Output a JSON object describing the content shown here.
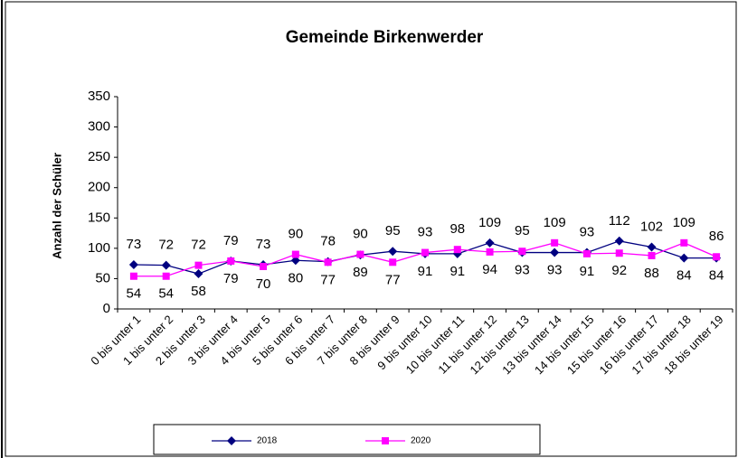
{
  "chart_data": {
    "type": "line",
    "title": "Gemeinde Birkenwerder",
    "y_label": "Anzahl der Schüler",
    "categories": [
      "0 bis unter 1",
      "1 bis unter 2",
      "2 bis unter 3",
      "3 bis unter 4",
      "4 bis unter 5",
      "5 bis unter 6",
      "6 bis unter 7",
      "7 bis unter 8",
      "8 bis unter 9",
      "9 bis unter 10",
      "10 bis unter 11",
      "11 bis unter 12",
      "12 bis unter 13",
      "13 bis unter 14",
      "14 bis unter 15",
      "15 bis unter 16",
      "16 bis unter 17",
      "17 bis unter 18",
      "18 bis unter 19"
    ],
    "series": [
      {
        "name": "2018",
        "color": "#000080",
        "marker": "diamond",
        "values": [
          73,
          72,
          58,
          79,
          73,
          80,
          78,
          89,
          95,
          91,
          91,
          109,
          93,
          93,
          93,
          112,
          102,
          84,
          84
        ]
      },
      {
        "name": "2020",
        "color": "#ff00ff",
        "marker": "square",
        "values": [
          54,
          54,
          72,
          79,
          70,
          90,
          77,
          90,
          77,
          93,
          98,
          94,
          95,
          109,
          91,
          92,
          88,
          109,
          86
        ]
      }
    ],
    "ylim": [
      0,
      350
    ],
    "yticks": [
      0,
      50,
      100,
      150,
      200,
      250,
      300,
      350
    ],
    "legend": "bottom"
  }
}
